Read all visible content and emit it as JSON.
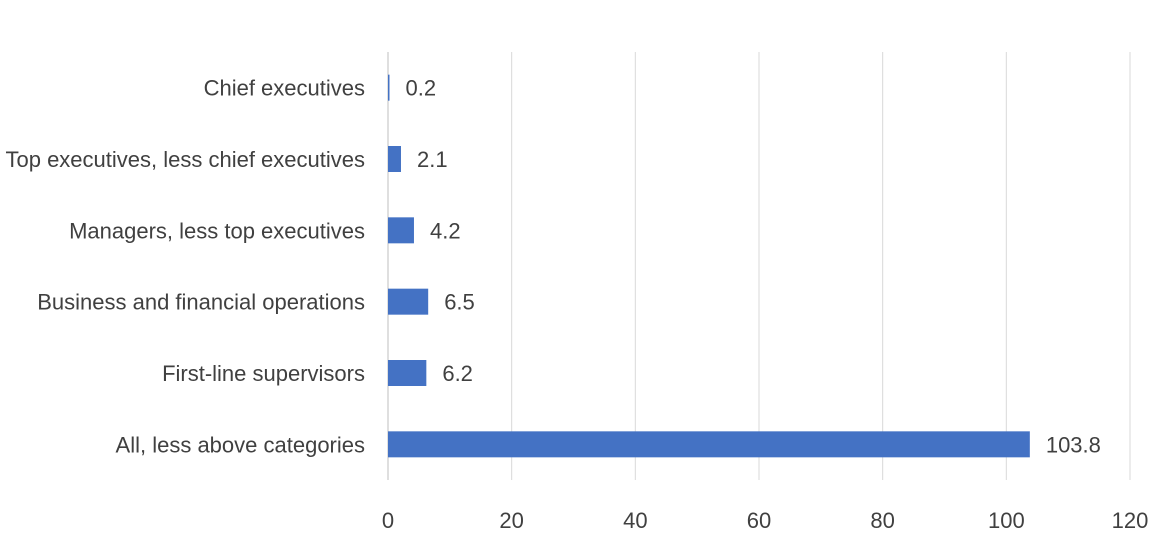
{
  "chart_data": {
    "type": "bar",
    "orientation": "horizontal",
    "categories": [
      "Chief executives",
      "Top executives, less chief executives",
      "Managers, less top executives",
      "Business and financial operations",
      "First-line supervisors",
      "All, less above categories"
    ],
    "values": [
      0.2,
      2.1,
      4.2,
      6.5,
      6.2,
      103.8
    ],
    "value_labels": [
      "0.2",
      "2.1",
      "4.2",
      "6.5",
      "6.2",
      "103.8"
    ],
    "xlim": [
      0,
      120
    ],
    "x_ticks": [
      0,
      20,
      40,
      60,
      80,
      100,
      120
    ],
    "title": "",
    "xlabel": "",
    "ylabel": "",
    "grid": "vertical",
    "legend": "none",
    "bar_color": "#4472c4"
  }
}
